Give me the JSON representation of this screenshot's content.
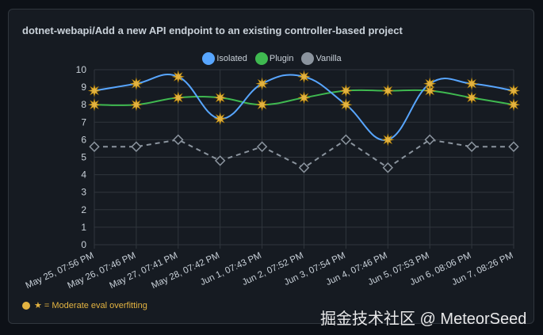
{
  "chart_data": {
    "type": "line",
    "title": "dotnet-webapi/Add a new API endpoint to an existing controller-based project",
    "categories": [
      "May 25, 07:56 PM",
      "May 26, 07:46 PM",
      "May 27, 07:41 PM",
      "May 28, 07:42 PM",
      "Jun 1, 07:43 PM",
      "Jun 2, 07:52 PM",
      "Jun 3, 07:54 PM",
      "Jun 4, 07:46 PM",
      "Jun 5, 07:53 PM",
      "Jun 6, 08:06 PM",
      "Jun 7, 08:26 PM"
    ],
    "ylim": [
      0,
      10
    ],
    "yticks": [
      0,
      1,
      2,
      3,
      4,
      5,
      6,
      7,
      8,
      9,
      10
    ],
    "grid": true,
    "legend_position": "top-center",
    "series": [
      {
        "name": "Isolated",
        "color": "#58a6ff",
        "values": [
          8.8,
          9.2,
          9.6,
          7.2,
          9.2,
          9.6,
          8.0,
          6.0,
          9.2,
          9.2,
          8.8
        ]
      },
      {
        "name": "Plugin",
        "color": "#3fb950",
        "values": [
          8.0,
          8.0,
          8.4,
          8.4,
          8.0,
          8.4,
          8.8,
          8.8,
          8.8,
          8.4,
          8.0
        ]
      },
      {
        "name": "Vanilla",
        "color": "#8b949e",
        "values": [
          5.6,
          5.6,
          6.0,
          4.8,
          5.6,
          4.4,
          6.0,
          4.4,
          6.0,
          5.6,
          5.6
        ]
      }
    ],
    "overfit_markers": {
      "Isolated": [
        0,
        1,
        2,
        3,
        4,
        5,
        6,
        7,
        8,
        9,
        10
      ],
      "Plugin": [
        0,
        1,
        2,
        3,
        4,
        5,
        6,
        7,
        8,
        9,
        10
      ]
    },
    "marker_color": "#e3b341",
    "annotation": "★ = Moderate eval overfitting"
  },
  "watermark": "掘金技术社区 @ MeteorSeed"
}
